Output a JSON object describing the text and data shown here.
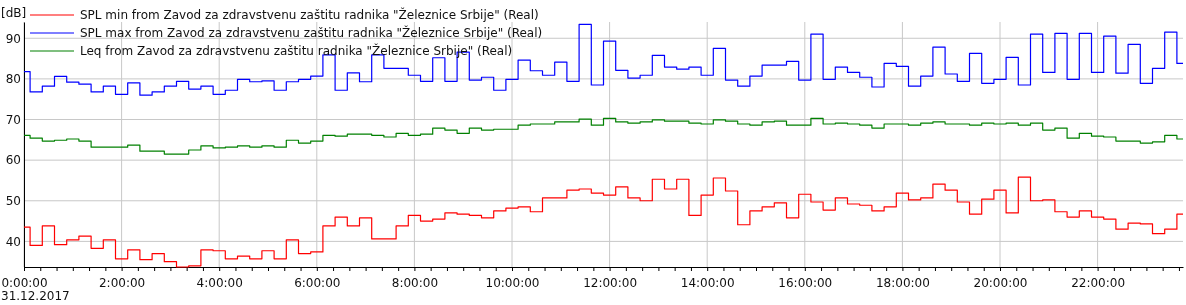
{
  "chart_data": {
    "type": "step",
    "ylabel": "[dB]",
    "annotations": [
      "31.12.2017"
    ],
    "xlim": [
      0,
      23.75
    ],
    "ylim": [
      33.7,
      94
    ],
    "yticks": [
      40,
      50,
      60,
      70,
      80,
      90
    ],
    "xticks": [
      {
        "value": 0,
        "label": "0:00:00"
      },
      {
        "value": 0.333,
        "label": null
      },
      {
        "value": 0.667,
        "label": null
      },
      {
        "value": 1,
        "label": null
      },
      {
        "value": 1.333,
        "label": null
      },
      {
        "value": 1.667,
        "label": null
      },
      {
        "value": 2,
        "label": "2:00:00"
      },
      {
        "value": 2.333,
        "label": null
      },
      {
        "value": 2.667,
        "label": null
      },
      {
        "value": 3,
        "label": null
      },
      {
        "value": 3.333,
        "label": null
      },
      {
        "value": 3.667,
        "label": null
      },
      {
        "value": 4,
        "label": "4:00:00"
      },
      {
        "value": 4.333,
        "label": null
      },
      {
        "value": 4.667,
        "label": null
      },
      {
        "value": 5,
        "label": null
      },
      {
        "value": 5.333,
        "label": null
      },
      {
        "value": 5.667,
        "label": null
      },
      {
        "value": 6,
        "label": "6:00:00"
      },
      {
        "value": 6.333,
        "label": null
      },
      {
        "value": 6.667,
        "label": null
      },
      {
        "value": 7,
        "label": null
      },
      {
        "value": 7.333,
        "label": null
      },
      {
        "value": 7.667,
        "label": null
      },
      {
        "value": 8,
        "label": "8:00:00"
      },
      {
        "value": 8.333,
        "label": null
      },
      {
        "value": 8.667,
        "label": null
      },
      {
        "value": 9,
        "label": null
      },
      {
        "value": 9.333,
        "label": null
      },
      {
        "value": 9.667,
        "label": null
      },
      {
        "value": 10,
        "label": "10:00:00"
      },
      {
        "value": 10.333,
        "label": null
      },
      {
        "value": 10.667,
        "label": null
      },
      {
        "value": 11,
        "label": null
      },
      {
        "value": 11.333,
        "label": null
      },
      {
        "value": 11.667,
        "label": null
      },
      {
        "value": 12,
        "label": "12:00:00"
      },
      {
        "value": 12.333,
        "label": null
      },
      {
        "value": 12.667,
        "label": null
      },
      {
        "value": 13,
        "label": null
      },
      {
        "value": 13.333,
        "label": null
      },
      {
        "value": 13.667,
        "label": null
      },
      {
        "value": 14,
        "label": "14:00:00"
      },
      {
        "value": 14.333,
        "label": null
      },
      {
        "value": 14.667,
        "label": null
      },
      {
        "value": 15,
        "label": null
      },
      {
        "value": 15.333,
        "label": null
      },
      {
        "value": 15.667,
        "label": null
      },
      {
        "value": 16,
        "label": "16:00:00"
      },
      {
        "value": 16.333,
        "label": null
      },
      {
        "value": 16.667,
        "label": null
      },
      {
        "value": 17,
        "label": null
      },
      {
        "value": 17.333,
        "label": null
      },
      {
        "value": 17.667,
        "label": null
      },
      {
        "value": 18,
        "label": "18:00:00"
      },
      {
        "value": 18.333,
        "label": null
      },
      {
        "value": 18.667,
        "label": null
      },
      {
        "value": 19,
        "label": null
      },
      {
        "value": 19.333,
        "label": null
      },
      {
        "value": 19.667,
        "label": null
      },
      {
        "value": 20,
        "label": "20:00:00"
      },
      {
        "value": 20.333,
        "label": null
      },
      {
        "value": 20.667,
        "label": null
      },
      {
        "value": 21,
        "label": null
      },
      {
        "value": 21.333,
        "label": null
      },
      {
        "value": 21.667,
        "label": null
      },
      {
        "value": 22,
        "label": "22:00:00"
      },
      {
        "value": 22.333,
        "label": null
      },
      {
        "value": 22.667,
        "label": null
      },
      {
        "value": 23,
        "label": null
      },
      {
        "value": 23.333,
        "label": null
      },
      {
        "value": 23.667,
        "label": null
      }
    ],
    "x": [
      0,
      0.125,
      0.375,
      0.625,
      0.875,
      1.125,
      1.375,
      1.625,
      1.875,
      2.125,
      2.375,
      2.625,
      2.875,
      3.125,
      3.375,
      3.625,
      3.875,
      4.125,
      4.375,
      4.625,
      4.875,
      5.125,
      5.375,
      5.625,
      5.875,
      6.125,
      6.375,
      6.625,
      6.875,
      7.125,
      7.375,
      7.625,
      7.875,
      8.125,
      8.375,
      8.625,
      8.875,
      9.125,
      9.375,
      9.625,
      9.875,
      10.125,
      10.375,
      10.625,
      10.875,
      11.125,
      11.375,
      11.625,
      11.875,
      12.125,
      12.375,
      12.625,
      12.875,
      13.125,
      13.375,
      13.625,
      13.875,
      14.125,
      14.375,
      14.625,
      14.875,
      15.125,
      15.375,
      15.625,
      15.875,
      16.125,
      16.375,
      16.625,
      16.875,
      17.125,
      17.375,
      17.625,
      17.875,
      18.125,
      18.375,
      18.625,
      18.875,
      19.125,
      19.375,
      19.625,
      19.875,
      20.125,
      20.375,
      20.625,
      20.875,
      21.125,
      21.375,
      21.625,
      21.875,
      22.125,
      22.375,
      22.625,
      22.875,
      23.125,
      23.375,
      23.625
    ],
    "series": [
      {
        "name": "SPL min from Zavod za zdravstvenu zaštitu radnika \"Železnice Srbije\" (Real)",
        "color": "#ff0000",
        "values": [
          43.5,
          39.0,
          43.8,
          39.2,
          40.4,
          41.3,
          38.3,
          40.4,
          35.7,
          37.9,
          35.5,
          37.0,
          35.0,
          33.7,
          34.0,
          37.9,
          37.7,
          35.7,
          36.4,
          35.7,
          37.7,
          35.7,
          40.4,
          37.0,
          37.4,
          43.8,
          46.0,
          43.8,
          45.8,
          40.6,
          40.6,
          43.8,
          46.4,
          45.0,
          45.5,
          47.0,
          46.7,
          46.4,
          45.8,
          47.5,
          48.2,
          48.5,
          47.3,
          50.7,
          50.7,
          52.6,
          52.9,
          51.9,
          51.4,
          53.4,
          50.7,
          50.0,
          55.3,
          52.9,
          55.3,
          46.4,
          51.4,
          55.6,
          52.4,
          44.1,
          47.5,
          48.5,
          49.5,
          45.8,
          51.6,
          49.7,
          47.7,
          50.7,
          49.2,
          48.9,
          47.5,
          48.5,
          51.9,
          50.2,
          50.7,
          54.1,
          52.6,
          49.7,
          46.7,
          50.4,
          52.6,
          47.0,
          55.8,
          50.0,
          50.2,
          47.3,
          46.0,
          47.5,
          46.0,
          45.5,
          43.0,
          44.5,
          44.3,
          41.9,
          43.0,
          46.7
        ]
      },
      {
        "name": "SPL max from Zavod za zdravstvenu zaštitu radnika \"Železnice Srbije\" (Real)",
        "color": "#0000ff",
        "values": [
          81.8,
          76.8,
          78.2,
          80.6,
          79.2,
          78.7,
          76.8,
          78.2,
          76.2,
          79.0,
          76.0,
          76.8,
          78.2,
          79.4,
          77.5,
          78.2,
          76.2,
          77.2,
          79.9,
          79.3,
          79.5,
          77.2,
          79.3,
          79.9,
          80.7,
          85.9,
          77.2,
          81.5,
          79.3,
          85.9,
          82.6,
          82.6,
          80.9,
          79.4,
          85.2,
          79.4,
          86.6,
          79.7,
          80.4,
          77.2,
          79.9,
          84.6,
          82.0,
          80.9,
          84.1,
          79.4,
          93.4,
          78.5,
          89.3,
          82.1,
          80.2,
          80.9,
          85.8,
          82.9,
          82.4,
          82.9,
          80.9,
          87.5,
          79.7,
          78.2,
          80.7,
          83.4,
          83.4,
          84.3,
          79.7,
          91.0,
          79.9,
          82.9,
          81.6,
          80.4,
          78.0,
          83.8,
          83.1,
          78.2,
          80.7,
          87.8,
          81.2,
          79.4,
          86.3,
          78.9,
          79.9,
          85.3,
          78.5,
          91.0,
          81.6,
          91.2,
          79.9,
          91.2,
          81.6,
          90.5,
          81.4,
          88.5,
          78.9,
          82.6,
          91.5,
          83.8
        ]
      },
      {
        "name": "Leq from Zavod za zdravstvenu zaštitu radnika \"Železnice Srbije\" (Real)",
        "color": "#008000",
        "values": [
          66.1,
          65.4,
          64.7,
          64.9,
          65.2,
          64.7,
          63.2,
          63.2,
          63.2,
          63.7,
          62.2,
          62.2,
          61.5,
          61.5,
          62.5,
          63.5,
          63.0,
          63.2,
          63.5,
          63.2,
          63.5,
          63.2,
          64.9,
          64.2,
          64.7,
          66.1,
          65.9,
          66.4,
          66.4,
          66.1,
          65.7,
          66.6,
          66.1,
          66.4,
          67.9,
          67.4,
          66.6,
          67.9,
          67.4,
          67.6,
          67.6,
          68.6,
          68.9,
          68.9,
          69.4,
          69.4,
          70.1,
          68.6,
          70.3,
          69.4,
          69.1,
          69.4,
          69.9,
          69.6,
          69.6,
          69.1,
          68.9,
          69.9,
          69.6,
          68.9,
          68.6,
          69.4,
          69.6,
          68.6,
          68.6,
          70.3,
          68.9,
          69.1,
          68.9,
          68.6,
          67.9,
          68.9,
          68.9,
          68.6,
          69.1,
          69.4,
          68.9,
          68.9,
          68.6,
          69.1,
          68.9,
          69.1,
          68.6,
          69.1,
          67.4,
          67.9,
          65.4,
          66.6,
          65.9,
          65.7,
          64.7,
          64.7,
          64.2,
          64.5,
          66.1,
          65.2
        ]
      }
    ],
    "grid": true,
    "legend": "top left"
  }
}
